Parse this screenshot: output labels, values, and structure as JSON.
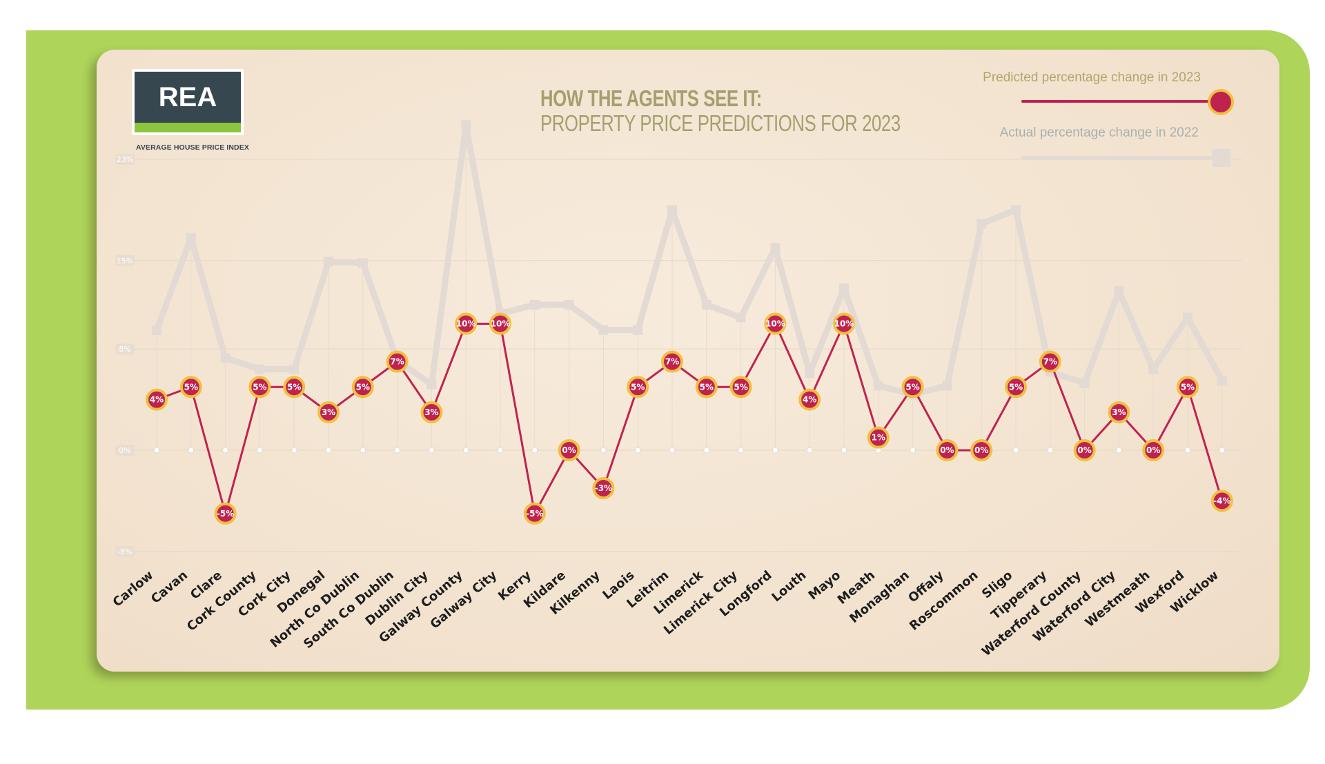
{
  "logo": {
    "text": "REA",
    "caption": "AVERAGE HOUSE PRICE INDEX"
  },
  "title": {
    "line1": "HOW THE AGENTS SEE IT:",
    "line2": "PROPERTY PRICE PREDICTIONS FOR 2023"
  },
  "legend": {
    "predicted": "Predicted percentage change in 2023",
    "actual": "Actual percentage change in 2022"
  },
  "colors": {
    "frame": "#aed45a",
    "predicted_line": "#c0224f",
    "predicted_marker_ring": "#f0c040",
    "actual_line": "#e3dad4",
    "title": "#a3a06e"
  },
  "chart_data": {
    "type": "line",
    "categories": [
      "Carlow",
      "Cavan",
      "Clare",
      "Cork County",
      "Cork City",
      "Donegal",
      "North Co Dublin",
      "South Co Dublin",
      "Dublin City",
      "Galway County",
      "Galway City",
      "Kerry",
      "Kildare",
      "Kilkenny",
      "Laois",
      "Leitrim",
      "Limerick",
      "Limerick City",
      "Longford",
      "Louth",
      "Mayo",
      "Meath",
      "Monaghan",
      "Offaly",
      "Roscommon",
      "Sligo",
      "Tipperary",
      "Waterford County",
      "Waterford City",
      "Westmeath",
      "Wexford",
      "Wicklow"
    ],
    "series": [
      {
        "name": "Predicted percentage change in 2023",
        "values": [
          4,
          5,
          -5,
          5,
          5,
          3,
          5,
          7,
          3,
          10,
          10,
          -5,
          0,
          -3,
          5,
          7,
          5,
          5,
          10,
          4,
          10,
          1,
          5,
          0,
          0,
          5,
          7,
          0,
          3,
          0,
          5,
          -4
        ],
        "labels": [
          "4%",
          "5%",
          "-5%",
          "5%",
          "5%",
          "3%",
          "5%",
          "7%",
          "3%",
          "10%",
          "10%",
          "-5%",
          "0%",
          "-3%",
          "5%",
          "7%",
          "5%",
          "5%",
          "10%",
          "4%",
          "10%",
          "1%",
          "5%",
          "0%",
          "0%",
          "5%",
          "7%",
          "0%",
          "3%",
          "0%",
          "5%",
          "-4%"
        ]
      },
      {
        "name": "Actual percentage change in 2022",
        "values": [
          9.5,
          16.8,
          7.3,
          6.4,
          6.4,
          14.9,
          14.8,
          7.1,
          5.2,
          25.7,
          10.8,
          11.5,
          11.5,
          9.5,
          9.5,
          19,
          11.5,
          10.5,
          16,
          6.1,
          12.8,
          5.1,
          4.4,
          5.1,
          17.9,
          19,
          6.2,
          5.3,
          12.6,
          6.4,
          10.5,
          5.5
        ]
      }
    ],
    "yticks": [
      "23%",
      "15%",
      "8%",
      "0%",
      "-8%"
    ],
    "ylim": [
      -8,
      23
    ],
    "grid": true,
    "legend_position": "top-right"
  }
}
